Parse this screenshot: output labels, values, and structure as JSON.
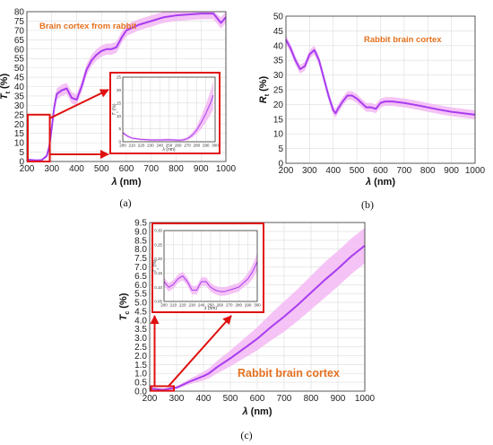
{
  "chart_data": [
    {
      "panel": "(a)",
      "type": "line",
      "annotation": "Brain cortex from rabbit",
      "xlabel": "λ (nm)",
      "ylabel": "T_t (%)",
      "xlim": [
        200,
        1000
      ],
      "ylim": [
        0,
        80
      ],
      "xticks": [
        200,
        300,
        400,
        500,
        600,
        700,
        800,
        900,
        1000
      ],
      "yticks": [
        0,
        5,
        10,
        15,
        20,
        25,
        30,
        35,
        40,
        45,
        50,
        55,
        60,
        65,
        70,
        75,
        80
      ],
      "grid": true,
      "x": [
        200,
        220,
        240,
        260,
        280,
        290,
        300,
        310,
        320,
        340,
        360,
        380,
        400,
        420,
        440,
        460,
        480,
        500,
        520,
        540,
        560,
        580,
        600,
        650,
        700,
        750,
        800,
        850,
        900,
        950,
        980,
        1000
      ],
      "values": [
        1,
        0.8,
        0.6,
        0.8,
        3,
        8,
        18,
        29,
        36,
        38,
        39,
        34,
        33,
        40,
        49,
        54,
        57,
        59,
        60,
        60,
        61,
        66,
        70,
        73,
        75,
        77,
        78,
        78.5,
        79,
        79,
        74,
        77
      ],
      "band": [
        0.5,
        0.5,
        0.5,
        0.5,
        1,
        1.5,
        2,
        2.5,
        3,
        3,
        3,
        3,
        3,
        3,
        3,
        3,
        3,
        3,
        3,
        3,
        3,
        3,
        3,
        3,
        3,
        3,
        3,
        3,
        3,
        3,
        3,
        3
      ],
      "inset": {
        "xlim": [
          200,
          300
        ],
        "ylim": [
          0,
          25
        ],
        "xticks": [
          200,
          210,
          220,
          230,
          240,
          250,
          260,
          270,
          280,
          290,
          300
        ],
        "yticks": [
          0,
          5,
          10,
          15,
          20,
          25
        ],
        "xlabel": "λ (nm)",
        "ylabel": "T_t (%)",
        "x": [
          200,
          205,
          210,
          220,
          230,
          240,
          250,
          260,
          265,
          270,
          275,
          280,
          285,
          290,
          295,
          298
        ],
        "values": [
          3.5,
          2.2,
          1.4,
          0.9,
          0.7,
          0.7,
          0.8,
          0.6,
          0.7,
          1.2,
          2.5,
          4.5,
          7.5,
          11,
          15,
          18
        ],
        "band": [
          0.6,
          0.5,
          0.4,
          0.4,
          0.4,
          0.4,
          0.4,
          0.4,
          0.5,
          0.6,
          1,
          1.5,
          2.5,
          3.5,
          4.5,
          5.5
        ]
      }
    },
    {
      "panel": "(b)",
      "type": "line",
      "annotation": "Rabbit brain cortex",
      "xlabel": "λ (nm)",
      "ylabel": "R_t (%)",
      "xlim": [
        200,
        1000
      ],
      "ylim": [
        0,
        50
      ],
      "xticks": [
        200,
        300,
        400,
        500,
        600,
        700,
        800,
        900,
        1000
      ],
      "yticks": [
        0,
        5,
        10,
        15,
        20,
        25,
        30,
        35,
        40,
        45,
        50
      ],
      "grid": true,
      "x": [
        200,
        220,
        240,
        260,
        280,
        300,
        320,
        340,
        360,
        380,
        400,
        410,
        420,
        440,
        460,
        480,
        500,
        520,
        540,
        560,
        580,
        600,
        620,
        650,
        700,
        750,
        800,
        850,
        900,
        950,
        1000
      ],
      "values": [
        42,
        39,
        35,
        32,
        33,
        37,
        38.5,
        35,
        29,
        23,
        18,
        17,
        18.5,
        21,
        23,
        23,
        22,
        20.5,
        19,
        19,
        18.5,
        20.5,
        21,
        21,
        20.5,
        19.8,
        19,
        18.2,
        17.5,
        17,
        16.5
      ],
      "band": [
        1.5,
        1.5,
        1.5,
        1.5,
        1.5,
        1.5,
        1.5,
        1.5,
        1.5,
        1.5,
        1.5,
        1.5,
        1.5,
        1.5,
        1.5,
        1.5,
        1.5,
        1.5,
        1.5,
        1.5,
        1.5,
        1.5,
        1.5,
        1.5,
        1.5,
        1.5,
        1.5,
        1.5,
        1.5,
        1.5,
        1.5
      ]
    },
    {
      "panel": "(c)",
      "type": "line",
      "annotation": "Rabbit brain cortex",
      "xlabel": "λ (nm)",
      "ylabel": "T_c (%)",
      "xlim": [
        200,
        1000
      ],
      "ylim": [
        0,
        9.5
      ],
      "xticks": [
        200,
        300,
        400,
        500,
        600,
        700,
        800,
        900,
        1000
      ],
      "yticks": [
        0,
        0.5,
        1,
        1.5,
        2,
        2.5,
        3,
        3.5,
        4,
        4.5,
        5,
        5.5,
        6,
        6.5,
        7,
        7.5,
        8,
        8.5,
        9,
        9.5
      ],
      "grid": true,
      "x": [
        200,
        250,
        300,
        350,
        400,
        420,
        450,
        500,
        550,
        600,
        650,
        700,
        750,
        800,
        850,
        900,
        950,
        1000
      ],
      "values": [
        0.15,
        0.08,
        0.2,
        0.55,
        0.85,
        1.0,
        1.35,
        1.85,
        2.4,
        2.95,
        3.6,
        4.2,
        4.85,
        5.55,
        6.25,
        6.9,
        7.6,
        8.2
      ],
      "band": [
        0.05,
        0.05,
        0.08,
        0.15,
        0.25,
        0.28,
        0.35,
        0.45,
        0.55,
        0.65,
        0.75,
        0.85,
        0.9,
        0.95,
        1.0,
        1.0,
        1.0,
        1.0
      ],
      "inset": {
        "xlim": [
          200,
          300
        ],
        "ylim": [
          0.05,
          0.3
        ],
        "xticks": [
          200,
          210,
          220,
          230,
          240,
          250,
          260,
          270,
          280,
          290,
          300
        ],
        "yticks": [
          0.05,
          0.1,
          0.15,
          0.2,
          0.25,
          0.3
        ],
        "xlabel": "λ (nm)",
        "ylabel": "T_c (%)",
        "x": [
          200,
          205,
          210,
          215,
          220,
          225,
          230,
          235,
          240,
          245,
          250,
          255,
          260,
          265,
          270,
          275,
          280,
          285,
          290,
          295,
          300
        ],
        "values": [
          0.12,
          0.1,
          0.11,
          0.13,
          0.14,
          0.12,
          0.09,
          0.09,
          0.12,
          0.12,
          0.1,
          0.09,
          0.085,
          0.085,
          0.09,
          0.095,
          0.1,
          0.115,
          0.13,
          0.155,
          0.19
        ],
        "band": [
          0.015,
          0.015,
          0.015,
          0.015,
          0.015,
          0.015,
          0.015,
          0.015,
          0.015,
          0.015,
          0.015,
          0.015,
          0.015,
          0.015,
          0.015,
          0.015,
          0.015,
          0.015,
          0.02,
          0.025,
          0.03
        ]
      }
    }
  ]
}
